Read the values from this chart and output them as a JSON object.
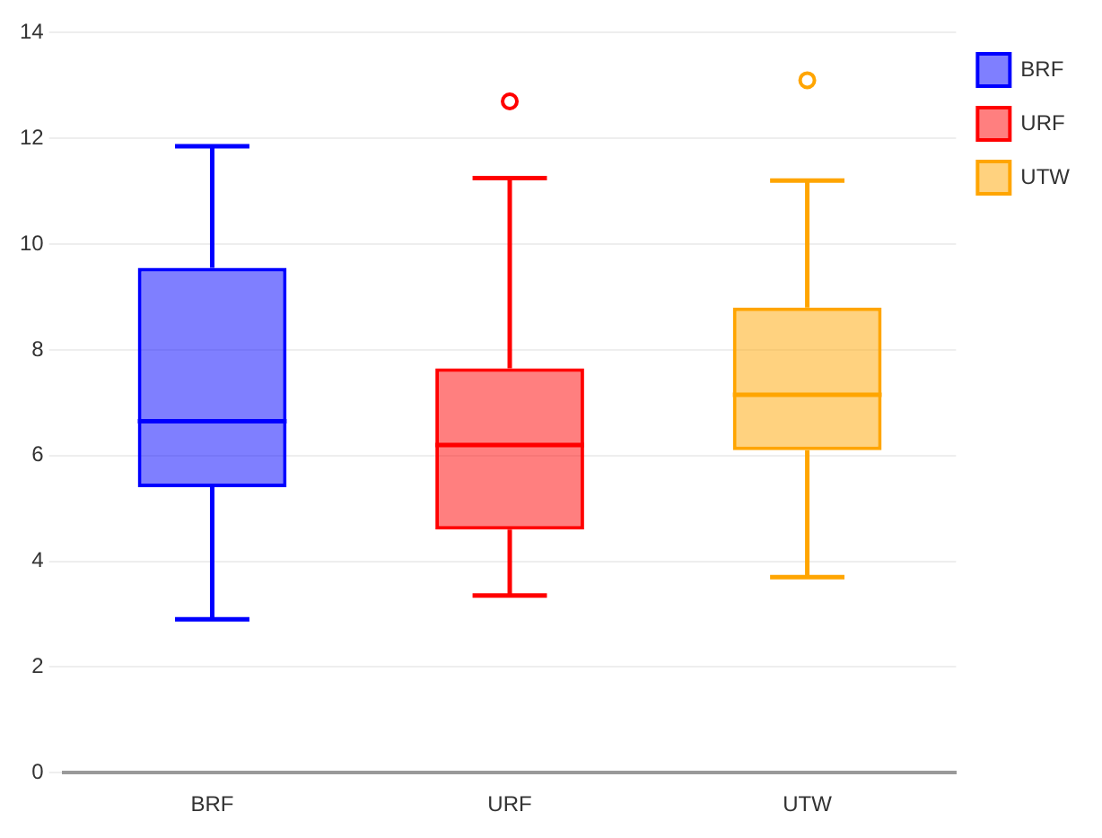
{
  "chart_data": {
    "type": "box",
    "categories": [
      "BRF",
      "URF",
      "UTW"
    ],
    "series": [
      {
        "name": "BRF",
        "color": "#0000ff",
        "boxes": [
          {
            "low": 2.9,
            "q1": 5.4,
            "median": 6.65,
            "q3": 9.55,
            "high": 11.85
          },
          null,
          null
        ]
      },
      {
        "name": "URF",
        "color": "#ff0000",
        "boxes": [
          null,
          {
            "low": 3.35,
            "q1": 4.6,
            "median": 6.2,
            "q3": 7.65,
            "high": 11.25,
            "outliers": [
              12.7
            ]
          },
          null
        ]
      },
      {
        "name": "UTW",
        "color": "#ffa500",
        "boxes": [
          null,
          null,
          {
            "low": 3.7,
            "q1": 6.1,
            "median": 7.15,
            "q3": 8.8,
            "high": 11.2,
            "outliers": [
              13.1
            ]
          }
        ]
      }
    ],
    "ylim": [
      0,
      14
    ],
    "yticks": [
      0,
      2,
      4,
      6,
      8,
      10,
      12,
      14
    ],
    "grid": "y",
    "legend": "top right"
  }
}
